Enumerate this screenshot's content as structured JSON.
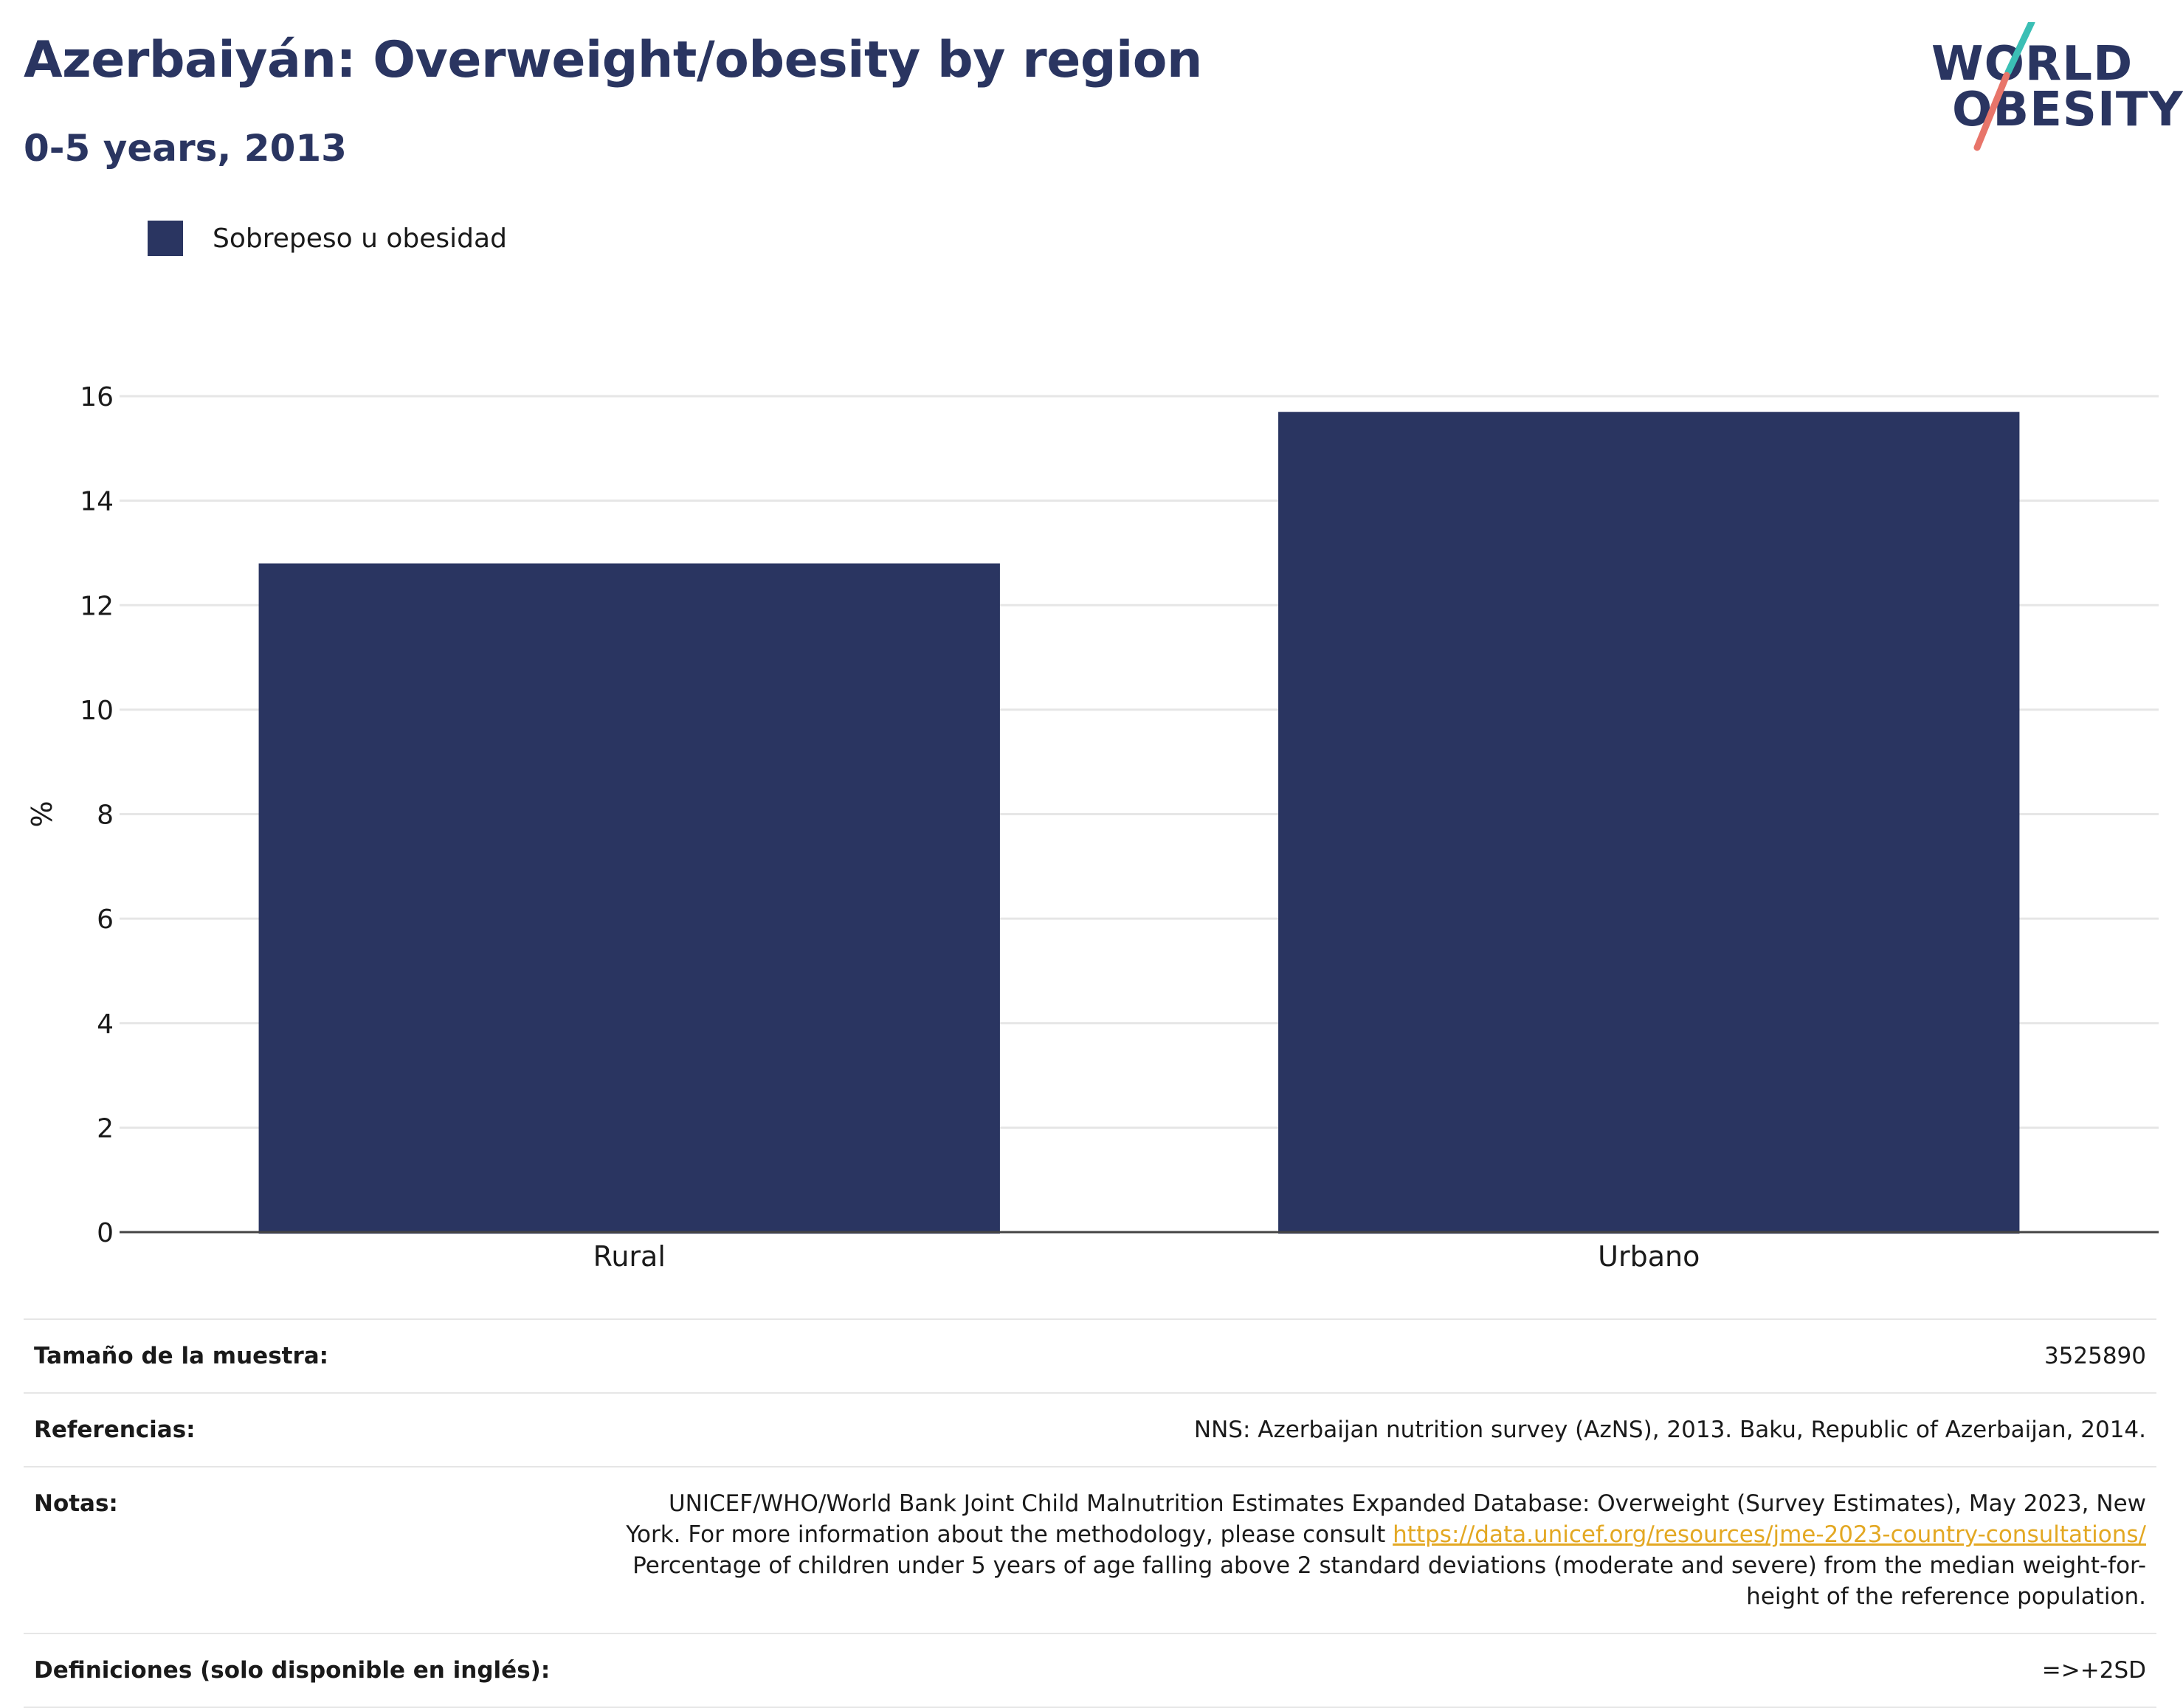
{
  "header": {
    "title": "Azerbaiyán: Overweight/obesity by region",
    "subtitle": "0-5 years, 2013"
  },
  "logo": {
    "line1": "WORLD",
    "line2": "OBESITY",
    "colors": {
      "text": "#2a3561",
      "slash_top": "#3bbfb5",
      "slash_bottom": "#e8756a"
    }
  },
  "legend": {
    "items": [
      {
        "label": "Sobrepeso u obesidad",
        "color": "#2a3561"
      }
    ]
  },
  "chart_data": {
    "type": "bar",
    "title": "Azerbaiyán: Overweight/obesity by region",
    "subtitle": "0-5 years, 2013",
    "categories": [
      "Rural",
      "Urbano"
    ],
    "series": [
      {
        "name": "Sobrepeso u obesidad",
        "values": [
          12.8,
          15.7
        ],
        "color": "#2a3561"
      }
    ],
    "ylabel": "%",
    "xlabel": "",
    "ylim": [
      0,
      16
    ],
    "yticks": [
      0,
      2,
      4,
      6,
      8,
      10,
      12,
      14,
      16
    ],
    "grid": true,
    "legend_position": "top-left"
  },
  "info": {
    "sample_label": "Tamaño de la muestra:",
    "sample_value": "3525890",
    "references_label": "Referencias:",
    "references_value": "NNS: Azerbaijan nutrition survey (AzNS), 2013. Baku, Republic of Azerbaijan, 2014.",
    "notes_label": "Notas:",
    "notes_text1": "UNICEF/WHO/World Bank Joint Child Malnutrition Estimates Expanded Database: Overweight (Survey Estimates), May 2023, New York. For more information about the methodology, please consult ",
    "notes_link": "https://data.unicef.org/resources/jme-2023-country-consultations/",
    "notes_text2": "Percentage of children under 5 years of age falling above 2 standard deviations (moderate and severe) from the median weight-for-height of the reference population.",
    "definitions_label": "Definiciones (solo disponible en inglés):",
    "definitions_value": "=>+2SD"
  }
}
